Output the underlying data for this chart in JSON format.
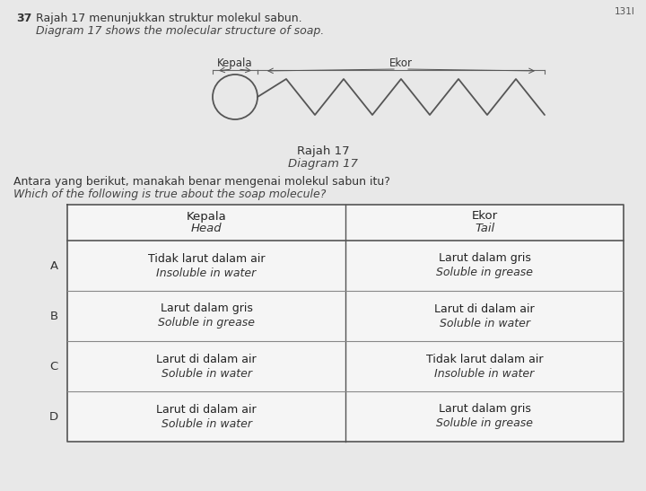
{
  "bg_color": "#e8e8e8",
  "question_number": "37",
  "title_malay": "Rajah 17 menunjukkan struktur molekul sabun.",
  "title_english": "Diagram 17 shows the molecular structure of soap.",
  "label_kepala": "Kepala",
  "label_ekor": "Ekor",
  "diagram_title_malay": "Rajah 17",
  "diagram_title_english": "Diagram 17",
  "question_malay": "Antara yang berikut, manakah benar mengenai molekul sabun itu?",
  "question_english": "Which of the following is true about the soap molecule?",
  "table_header_col1_malay": "Kepala",
  "table_header_col1_english": "Head",
  "table_header_col2_malay": "Ekor",
  "table_header_col2_english": "Tail",
  "table_bg": "#f5f5f5",
  "rows": [
    {
      "option": "A",
      "col1_malay": "Tidak larut dalam air",
      "col1_english": "Insoluble in water",
      "col2_malay": "Larut dalam gris",
      "col2_english": "Soluble in grease"
    },
    {
      "option": "B",
      "col1_malay": "Larut dalam gris",
      "col1_english": "Soluble in grease",
      "col2_malay": "Larut di dalam air",
      "col2_english": "Soluble in water"
    },
    {
      "option": "C",
      "col1_malay": "Larut di dalam air",
      "col1_english": "Soluble in water",
      "col2_malay": "Tidak larut dalam air",
      "col2_english": "Insoluble in water"
    },
    {
      "option": "D",
      "col1_malay": "Larut di dalam air",
      "col1_english": "Soluble in water",
      "col2_malay": "Larut dalam gris",
      "col2_english": "Soluble in grease"
    }
  ]
}
